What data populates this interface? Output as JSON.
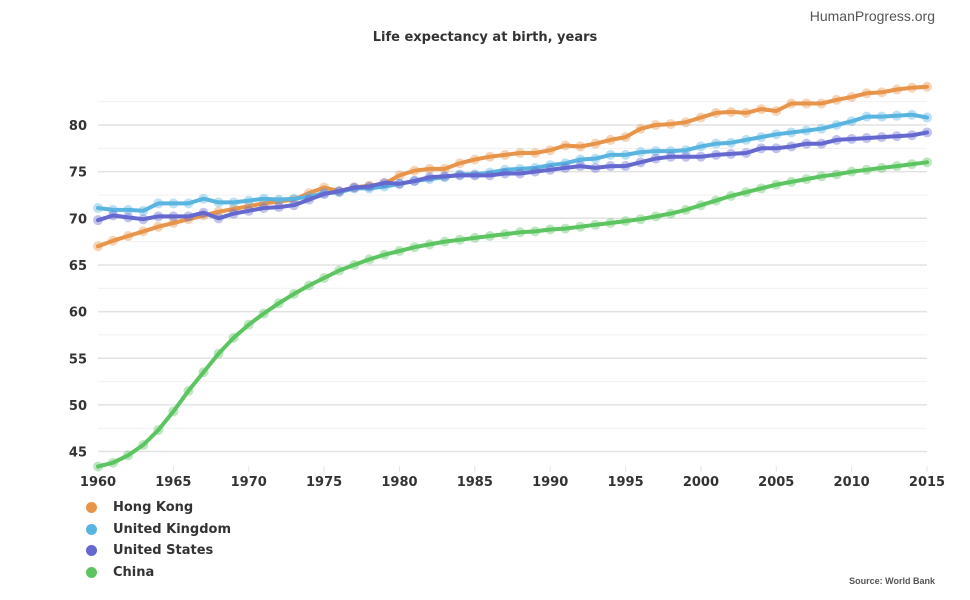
{
  "brand": "HumanProgress.org",
  "source": "Source: World Bank",
  "chart_data": {
    "type": "line",
    "title": "Life expectancy at birth, years",
    "xlabel": "",
    "ylabel": "",
    "xlim": [
      1960,
      2015
    ],
    "ylim": [
      44,
      85
    ],
    "grid": true,
    "legend_position": "bottom-left",
    "x_ticks": [
      "1960",
      "1965",
      "1970",
      "1975",
      "1980",
      "1985",
      "1990",
      "1995",
      "2000",
      "2005",
      "2010",
      "2015"
    ],
    "y_ticks": [
      "45",
      "50",
      "55",
      "60",
      "65",
      "70",
      "75",
      "80"
    ],
    "x": [
      1960,
      1961,
      1962,
      1963,
      1964,
      1965,
      1966,
      1967,
      1968,
      1969,
      1970,
      1971,
      1972,
      1973,
      1974,
      1975,
      1976,
      1977,
      1978,
      1979,
      1980,
      1981,
      1982,
      1983,
      1984,
      1985,
      1986,
      1987,
      1988,
      1989,
      1990,
      1991,
      1992,
      1993,
      1994,
      1995,
      1996,
      1997,
      1998,
      1999,
      2000,
      2001,
      2002,
      2003,
      2004,
      2005,
      2006,
      2007,
      2008,
      2009,
      2010,
      2011,
      2012,
      2013,
      2014,
      2015
    ],
    "series": [
      {
        "name": "Hong Kong",
        "color": "#e8944a",
        "values": [
          67.0,
          67.6,
          68.1,
          68.6,
          69.1,
          69.5,
          69.9,
          70.3,
          70.7,
          71.0,
          71.3,
          71.6,
          71.8,
          72.0,
          72.7,
          73.3,
          72.9,
          73.3,
          73.5,
          73.7,
          74.6,
          75.1,
          75.3,
          75.3,
          75.9,
          76.3,
          76.6,
          76.8,
          77.0,
          77.0,
          77.3,
          77.8,
          77.7,
          78.0,
          78.4,
          78.7,
          79.6,
          80.0,
          80.1,
          80.3,
          80.8,
          81.3,
          81.4,
          81.3,
          81.7,
          81.5,
          82.3,
          82.3,
          82.3,
          82.7,
          83.0,
          83.4,
          83.5,
          83.8,
          84.0,
          84.1
        ]
      },
      {
        "name": "United Kingdom",
        "color": "#5ab4e0",
        "values": [
          71.1,
          70.9,
          70.9,
          70.8,
          71.6,
          71.6,
          71.6,
          72.1,
          71.7,
          71.7,
          71.9,
          72.1,
          72.0,
          72.1,
          72.3,
          72.7,
          72.8,
          73.2,
          73.2,
          73.4,
          73.7,
          74.0,
          74.2,
          74.4,
          74.7,
          74.7,
          74.9,
          75.2,
          75.3,
          75.4,
          75.7,
          75.9,
          76.3,
          76.4,
          76.8,
          76.8,
          77.1,
          77.2,
          77.2,
          77.3,
          77.7,
          78.0,
          78.1,
          78.4,
          78.7,
          79.0,
          79.2,
          79.4,
          79.6,
          80.0,
          80.4,
          80.9,
          80.9,
          81.0,
          81.1,
          80.8
        ]
      },
      {
        "name": "United States",
        "color": "#6468cf",
        "values": [
          69.8,
          70.3,
          70.1,
          69.9,
          70.2,
          70.2,
          70.2,
          70.6,
          70.0,
          70.5,
          70.8,
          71.1,
          71.2,
          71.4,
          72.0,
          72.6,
          72.9,
          73.3,
          73.4,
          73.8,
          73.7,
          74.0,
          74.4,
          74.5,
          74.6,
          74.6,
          74.6,
          74.8,
          74.8,
          75.0,
          75.2,
          75.4,
          75.6,
          75.4,
          75.6,
          75.6,
          76.0,
          76.4,
          76.6,
          76.6,
          76.6,
          76.8,
          76.9,
          77.0,
          77.5,
          77.5,
          77.7,
          78.0,
          78.0,
          78.4,
          78.5,
          78.6,
          78.7,
          78.8,
          78.9,
          79.2
        ]
      },
      {
        "name": "China",
        "color": "#5cc461",
        "values": [
          43.4,
          43.8,
          44.6,
          45.7,
          47.3,
          49.3,
          51.5,
          53.5,
          55.5,
          57.2,
          58.6,
          59.8,
          60.9,
          61.9,
          62.8,
          63.6,
          64.4,
          65.0,
          65.6,
          66.1,
          66.5,
          66.9,
          67.2,
          67.5,
          67.7,
          67.9,
          68.1,
          68.3,
          68.5,
          68.6,
          68.8,
          68.9,
          69.1,
          69.3,
          69.5,
          69.7,
          69.9,
          70.2,
          70.5,
          70.9,
          71.4,
          71.9,
          72.4,
          72.8,
          73.2,
          73.6,
          73.9,
          74.2,
          74.5,
          74.7,
          75.0,
          75.2,
          75.4,
          75.6,
          75.8,
          76.0
        ]
      }
    ]
  }
}
